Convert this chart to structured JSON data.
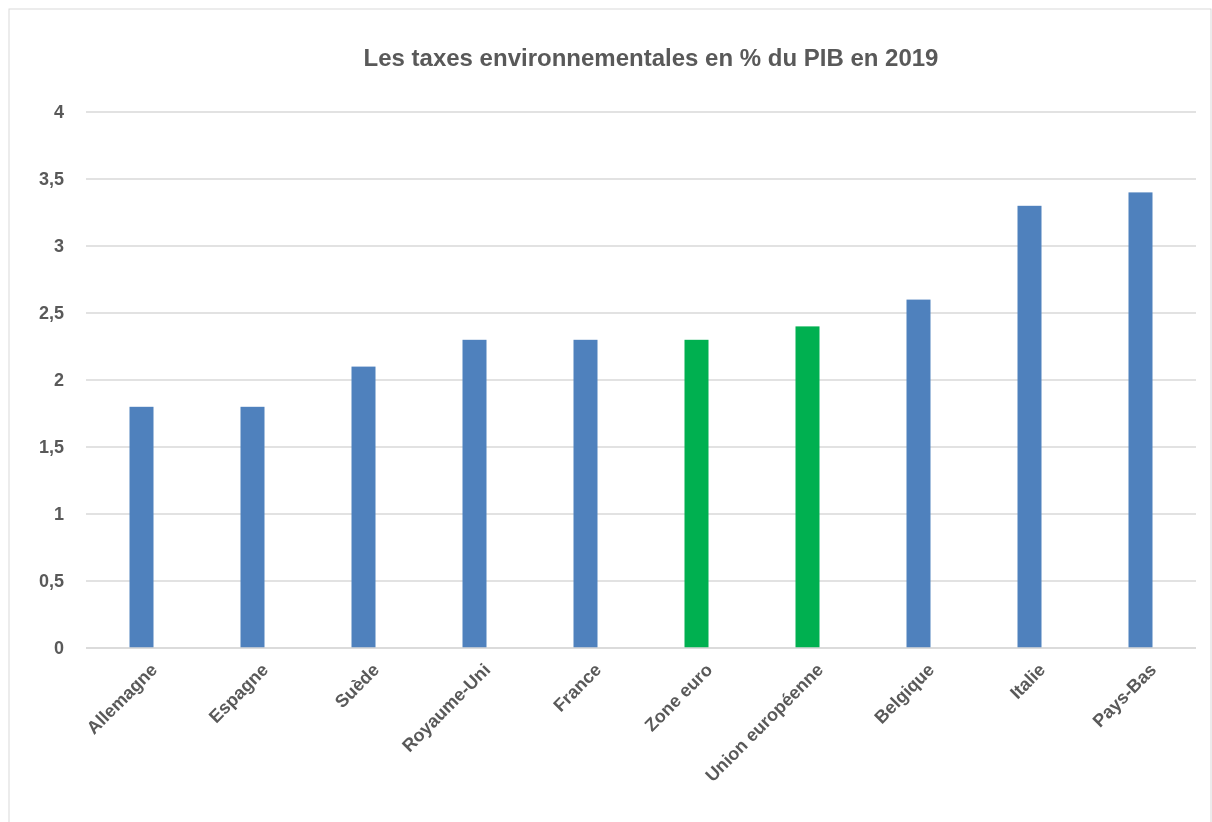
{
  "chart_data": {
    "type": "bar",
    "title": "Les taxes environnementales en % du PIB en 2019",
    "categories": [
      "Allemagne",
      "Espagne",
      "Suède",
      "Royaume-Uni",
      "France",
      "Zone euro",
      "Union européenne",
      "Belgique",
      "Italie",
      "Pays-Bas"
    ],
    "values": [
      1.8,
      1.8,
      2.1,
      2.3,
      2.3,
      2.3,
      2.4,
      2.6,
      3.3,
      3.4
    ],
    "colors": [
      "#4f81bd",
      "#4f81bd",
      "#4f81bd",
      "#4f81bd",
      "#4f81bd",
      "#00b050",
      "#00b050",
      "#4f81bd",
      "#4f81bd",
      "#4f81bd"
    ],
    "ylim": [
      0,
      4
    ],
    "yticks": [
      0,
      {
        "value": 0.5,
        "label": "0,5"
      },
      1,
      {
        "value": 1.5,
        "label": "1,5"
      },
      2,
      {
        "value": 2.5,
        "label": "2,5"
      },
      3,
      {
        "value": 3.5,
        "label": "3,5"
      },
      4
    ],
    "grid": "y"
  }
}
